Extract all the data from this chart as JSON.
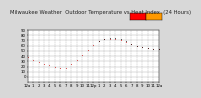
{
  "title": "Milwaukee Weather  Outdoor Temperature vs Heat Index  (24 Hours)",
  "title_fontsize": 3.8,
  "bg_color": "#d8d8d8",
  "plot_bg": "#ffffff",
  "legend_red": "#ff0000",
  "legend_orange": "#ff9900",
  "x_labels": [
    "12a",
    "1",
    "2",
    "3",
    "4",
    "5",
    "6",
    "7",
    "8",
    "9",
    "10",
    "11",
    "12p",
    "1",
    "2",
    "3",
    "4",
    "5",
    "6",
    "7",
    "8",
    "9",
    "10",
    "11",
    "12a"
  ],
  "ylim": [
    -10,
    90
  ],
  "xlim": [
    0,
    24
  ],
  "yticks": [
    0,
    10,
    20,
    30,
    40,
    50,
    60,
    70,
    80,
    90
  ],
  "temp_x": [
    0,
    1,
    2,
    3,
    4,
    5,
    6,
    7,
    8,
    9,
    10,
    11,
    12,
    13,
    14,
    15,
    16,
    17,
    18,
    19,
    20,
    21,
    22,
    23,
    24
  ],
  "temp_y": [
    38,
    32,
    28,
    25,
    22,
    20,
    18,
    18,
    25,
    33,
    42,
    52,
    62,
    68,
    72,
    73,
    72,
    70,
    67,
    63,
    60,
    57,
    55,
    54,
    53
  ],
  "heat_x": [
    13,
    14,
    15,
    16,
    17,
    18,
    19,
    20,
    21,
    22,
    23,
    24
  ],
  "heat_y": [
    68,
    73,
    75,
    74,
    72,
    68,
    63,
    60,
    57,
    56,
    54,
    53
  ],
  "temp_dot_color": "#cc0000",
  "heat_dot_color": "#000000",
  "grid_color": "#999999",
  "tick_fontsize": 2.8,
  "markersize": 1.0
}
